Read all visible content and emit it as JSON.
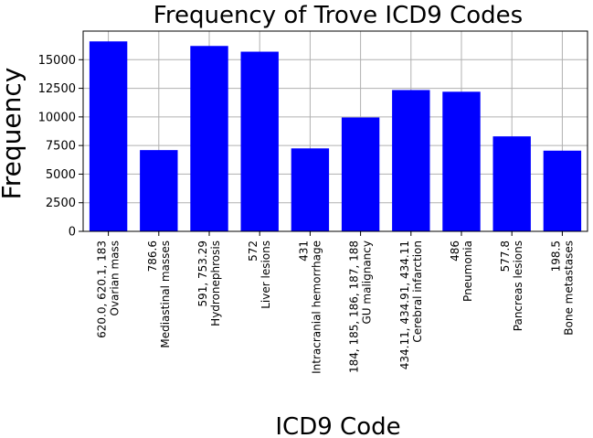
{
  "chart_data": {
    "type": "bar",
    "title": "Frequency of Trove ICD9 Codes",
    "xlabel": "ICD9 Code",
    "ylabel": "Frequency",
    "ylim": [
      0,
      17500
    ],
    "yticks": [
      0,
      2500,
      5000,
      7500,
      10000,
      12500,
      15000
    ],
    "ytick_labels": [
      "0",
      "2500",
      "5000",
      "7500",
      "10000",
      "12500",
      "15000"
    ],
    "grid": true,
    "bar_color": "#0000ff",
    "categories": [
      {
        "code": "620.0, 620.1, 183",
        "name": "Ovarian mass"
      },
      {
        "code": "786.6",
        "name": "Mediastinal masses"
      },
      {
        "code": "591, 753.29",
        "name": "Hydronephrosis"
      },
      {
        "code": "572",
        "name": "Liver lesions"
      },
      {
        "code": "431",
        "name": "Intracranial hemorrhage"
      },
      {
        "code": "184, 185, 186, 187, 188",
        "name": "GU malignancy"
      },
      {
        "code": "434.11, 434.91, 434.11",
        "name": "Cerebral infarction"
      },
      {
        "code": "486",
        "name": "Pneumonia"
      },
      {
        "code": "577.8",
        "name": "Pancreas lesions"
      },
      {
        "code": "198.5",
        "name": "Bone metastases"
      }
    ],
    "values": [
      16600,
      7100,
      16200,
      15700,
      7250,
      9950,
      12350,
      12200,
      8300,
      7050
    ]
  }
}
